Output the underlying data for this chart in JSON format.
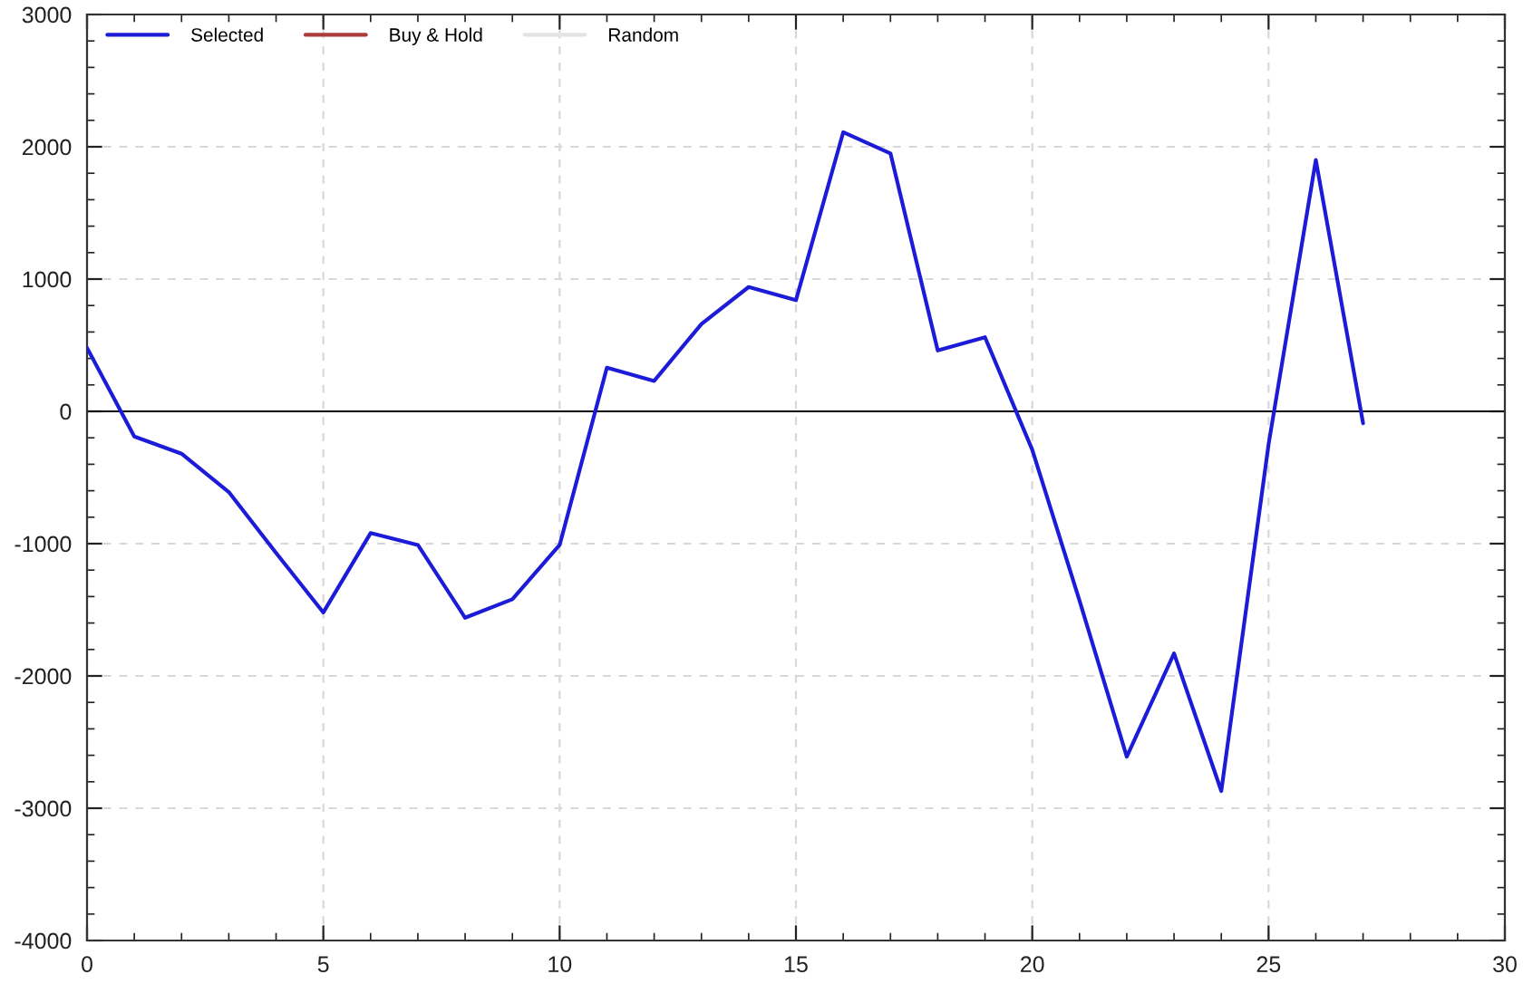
{
  "chart_data": {
    "type": "line",
    "x": [
      0,
      1,
      2,
      3,
      4,
      5,
      6,
      7,
      8,
      9,
      10,
      11,
      12,
      13,
      14,
      15,
      16,
      17,
      18,
      19,
      20,
      21,
      22,
      23,
      24,
      25,
      26,
      27
    ],
    "series": [
      {
        "name": "Selected",
        "color": "#1c1cd8",
        "values": [
          480,
          -190,
          -320,
          -610,
          -1070,
          -1520,
          -920,
          -1010,
          -1560,
          -1420,
          -1010,
          330,
          230,
          660,
          940,
          840,
          2110,
          1950,
          460,
          560,
          -290,
          -1430,
          -2610,
          -1830,
          -2870,
          -250,
          1900,
          -90
        ]
      },
      {
        "name": "Buy & Hold",
        "color": "#a83c3c",
        "values": [
          null,
          null,
          null,
          null,
          null,
          null,
          null,
          null,
          null,
          null,
          null,
          null,
          null,
          null,
          null,
          null,
          null,
          null,
          null,
          null,
          null,
          null,
          null,
          null,
          null,
          null,
          null,
          null
        ]
      },
      {
        "name": "Random",
        "color": "#e4e4e4",
        "values": [
          null,
          null,
          null,
          null,
          null,
          null,
          null,
          null,
          null,
          null,
          null,
          null,
          null,
          null,
          null,
          null,
          null,
          null,
          null,
          null,
          null,
          null,
          null,
          null,
          null,
          null,
          null,
          null
        ]
      }
    ],
    "xlim": [
      0,
      30
    ],
    "xticks": [
      0,
      5,
      10,
      15,
      20,
      25,
      30
    ],
    "ylim": [
      -4000,
      3000
    ],
    "yticks": [
      -4000,
      -3000,
      -2000,
      -1000,
      0,
      1000,
      2000,
      3000
    ],
    "grid": true,
    "legend": "top left",
    "marker": "none",
    "line_style": "solid",
    "ref_lines": [
      {
        "axis": "y",
        "value": 0,
        "color": "#000000"
      }
    ]
  }
}
